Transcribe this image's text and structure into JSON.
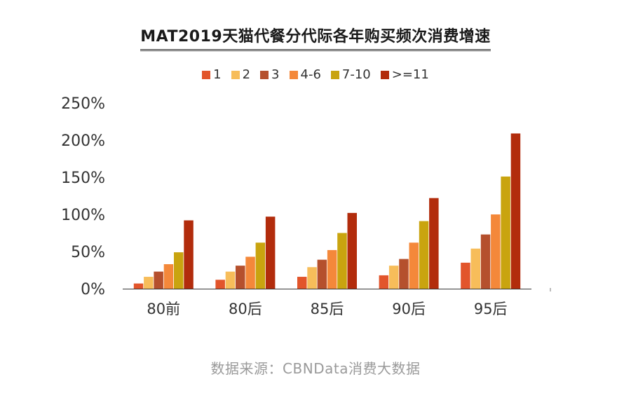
{
  "chart_data": {
    "type": "bar",
    "title": "MAT2019天猫代餐分代际各年购买频次消费增速",
    "categories": [
      "80前",
      "80后",
      "85后",
      "90后",
      "95后"
    ],
    "series": [
      {
        "name": "1",
        "color": "#e2552b",
        "values": [
          7,
          12,
          16,
          18,
          35
        ]
      },
      {
        "name": "2",
        "color": "#f7bd5a",
        "values": [
          16,
          23,
          29,
          31,
          54
        ]
      },
      {
        "name": "3",
        "color": "#b5502d",
        "values": [
          23,
          31,
          39,
          40,
          73
        ]
      },
      {
        "name": "4-6",
        "color": "#f4883a",
        "values": [
          33,
          43,
          52,
          62,
          100
        ]
      },
      {
        "name": "7-10",
        "color": "#c9a40f",
        "values": [
          49,
          62,
          75,
          91,
          151
        ]
      },
      {
        "name": ">=11",
        "color": "#b22c0c",
        "values": [
          92,
          97,
          102,
          122,
          209
        ]
      }
    ],
    "ylim": [
      0,
      250
    ],
    "yticks": [
      "0%",
      "50%",
      "100%",
      "150%",
      "200%",
      "250%"
    ],
    "ytick_values": [
      0,
      50,
      100,
      150,
      200,
      250
    ],
    "legend_position": "top",
    "grid": false
  },
  "source": "数据来源：CBNData消费大数据"
}
